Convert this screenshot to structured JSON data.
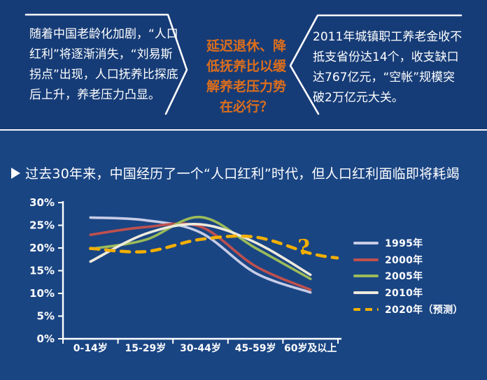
{
  "colors": {
    "background": "#1A4583",
    "top_band": "#163C77",
    "divider": "#F7F7F7",
    "callout_text": "#FFFFFF",
    "question_text": "#DC6E1C",
    "axis": "#FFFFFF",
    "annotation": "#F3AF00"
  },
  "top": {
    "left_box": {
      "lines": [
        "随着中国老龄化加剧，“人口",
        "红利”将逐渐消失，“刘易斯",
        "拐点”出现，人口抚养比探底",
        "后上升，养老压力凸显。"
      ]
    },
    "middle": {
      "lines": [
        "延迟退休、降",
        "低抚养比以缓",
        "解养老压力势",
        "在必行？"
      ]
    },
    "right_box": {
      "lines": [
        "2011年城镇职工养老金收不",
        "抵支省份达14个，收支缺口",
        "达767亿元，“空帐”规模突",
        "破2万亿元大关。"
      ]
    }
  },
  "section": {
    "heading": "过去30年来，中国经历了一个“人口红利”时代，但人口红利面临即将耗竭"
  },
  "chart_data": {
    "type": "line",
    "title": "",
    "xlabel": "",
    "ylabel": "",
    "categories": [
      "0-14岁",
      "15-29岁",
      "30-44岁",
      "45-59岁",
      "60岁及以上"
    ],
    "series": [
      {
        "name": "1995年",
        "color": "#C7CCE6",
        "dashed": false,
        "values": [
          26.7,
          26.1,
          23.4,
          14.5,
          10.2
        ]
      },
      {
        "name": "2000年",
        "color": "#C0504D",
        "dashed": false,
        "values": [
          22.9,
          24.6,
          24.7,
          16.0,
          10.8
        ]
      },
      {
        "name": "2005年",
        "color": "#9BBB59",
        "dashed": false,
        "values": [
          19.8,
          21.8,
          26.8,
          20.0,
          13.2
        ]
      },
      {
        "name": "2010年",
        "color": "#EEEADC",
        "dashed": false,
        "values": [
          17.0,
          23.1,
          25.2,
          21.2,
          14.1
        ]
      },
      {
        "name": "2020年（预测）",
        "color": "#F3AF00",
        "dashed": true,
        "values": [
          19.9,
          19.2,
          21.9,
          22.4,
          18.8
        ]
      }
    ],
    "ylabel_ticks": [
      "0%",
      "5%",
      "10%",
      "15%",
      "20%",
      "25%",
      "30%"
    ],
    "ylim": [
      0,
      30
    ],
    "grid": false,
    "legend_position": "right",
    "annotation": "?"
  }
}
